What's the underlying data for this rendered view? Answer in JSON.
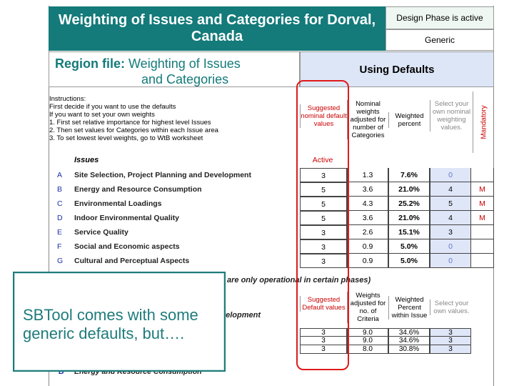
{
  "title": "Weighting of Issues and Categories for Dorval, Canada",
  "phase_status": "Design Phase is active",
  "mode": "Generic",
  "region": {
    "prefix": "Region file:",
    "line1": "Weighting of Issues",
    "line2": "and Categories"
  },
  "using_defaults": "Using Defaults",
  "instructions": [
    "Instructions:",
    "First decide if you want to use the defaults",
    "If you want to set your own weights",
    "1.  First set relative importance for highest level Issues",
    "2.  Then set values for Categories within each Issue area",
    "3.  To set lowest level weights, go to WtB worksheet"
  ],
  "headers": {
    "suggested": "Suggested nominal default values",
    "nominal": "Nominal weights adjusted for number of Categories",
    "weighted": "Weighted percent",
    "select": "Select your own nominal weighting values.",
    "mandatory": "Mandatory"
  },
  "issues_label": "Issues",
  "active_label": "Active",
  "issues": [
    {
      "letter": "A",
      "name": "Site Selection, Project Planning and Development",
      "suggested": "3",
      "nominal": "1.3",
      "weighted": "7.6%",
      "own": "0",
      "mandatory": ""
    },
    {
      "letter": "B",
      "name": "Energy and Resource Consumption",
      "suggested": "5",
      "nominal": "3.6",
      "weighted": "21.0%",
      "own": "4",
      "mandatory": "M"
    },
    {
      "letter": "C",
      "name": "Environmental Loadings",
      "suggested": "5",
      "nominal": "4.3",
      "weighted": "25.2%",
      "own": "5",
      "mandatory": "M"
    },
    {
      "letter": "D",
      "name": "Indoor Environmental Quality",
      "suggested": "5",
      "nominal": "3.6",
      "weighted": "21.0%",
      "own": "4",
      "mandatory": "M"
    },
    {
      "letter": "E",
      "name": "Service Quality",
      "suggested": "3",
      "nominal": "2.6",
      "weighted": "15.1%",
      "own": "3",
      "mandatory": ""
    },
    {
      "letter": "F",
      "name": "Social and Economic aspects",
      "suggested": "3",
      "nominal": "0.9",
      "weighted": "5.0%",
      "own": "0",
      "mandatory": ""
    },
    {
      "letter": "G",
      "name": "Cultural and Perceptual Aspects",
      "suggested": "3",
      "nominal": "0.9",
      "weighted": "5.0%",
      "own": "0",
      "mandatory": ""
    }
  ],
  "phases_text": "are only operational in certain phases)",
  "headers2": {
    "suggested": "Suggested Default values",
    "weights": "Weights adjusted for no. of Criteria",
    "weighted": "Weighted Percent within Issue",
    "select": "Select your own values."
  },
  "development_text": "velopment",
  "criteria": [
    {
      "suggested": "3",
      "weights": "9.0",
      "percent": "34.6%",
      "own": "3"
    },
    {
      "suggested": "3",
      "weights": "9.0",
      "percent": "34.6%",
      "own": "3"
    },
    {
      "suggested": "3",
      "weights": "8.0",
      "percent": "30.8%",
      "own": "3"
    }
  ],
  "bottom_row": "Energy and Resource Consumption",
  "callout": "SBTool comes with some generic defaults, but…."
}
